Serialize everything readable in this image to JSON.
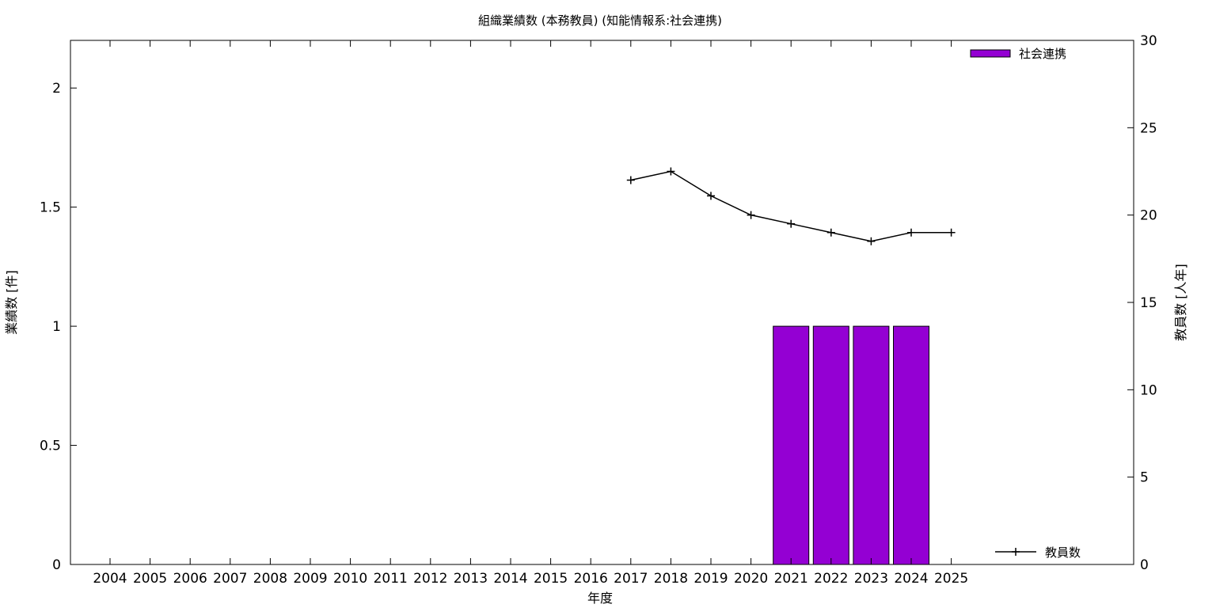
{
  "chart_data": {
    "type": "bar",
    "title": "組織業績数 (本務教員) (知能情報系:社会連携)",
    "xlabel": "年度",
    "ylabel": "業績数 [件]",
    "y2label": "教員数 [人年]",
    "categories": [
      "2004",
      "2005",
      "2006",
      "2007",
      "2008",
      "2009",
      "2010",
      "2011",
      "2012",
      "2013",
      "2014",
      "2015",
      "2016",
      "2017",
      "2018",
      "2019",
      "2020",
      "2021",
      "2022",
      "2023",
      "2024",
      "2025"
    ],
    "ylim": [
      0,
      2.2
    ],
    "yticks": [
      "0",
      "0.5",
      "1",
      "1.5",
      "2"
    ],
    "y2lim": [
      0,
      30
    ],
    "y2ticks": [
      "0",
      "5",
      "10",
      "15",
      "20",
      "25",
      "30"
    ],
    "grid": false,
    "series": [
      {
        "name": "社会連携",
        "axis": "left",
        "type": "bar",
        "color": "#9400d3",
        "values": [
          null,
          null,
          null,
          null,
          null,
          null,
          null,
          null,
          null,
          null,
          null,
          null,
          null,
          null,
          null,
          null,
          null,
          1,
          1,
          1,
          1,
          null
        ]
      },
      {
        "name": "教員数",
        "axis": "right",
        "type": "line",
        "color": "#000000",
        "values": [
          null,
          null,
          null,
          null,
          null,
          null,
          null,
          null,
          null,
          null,
          null,
          null,
          null,
          22.0,
          22.5,
          21.1,
          20.0,
          19.5,
          19.0,
          18.5,
          19.0,
          19.0
        ]
      }
    ],
    "legend": [
      "top-right",
      "bottom-right"
    ]
  }
}
